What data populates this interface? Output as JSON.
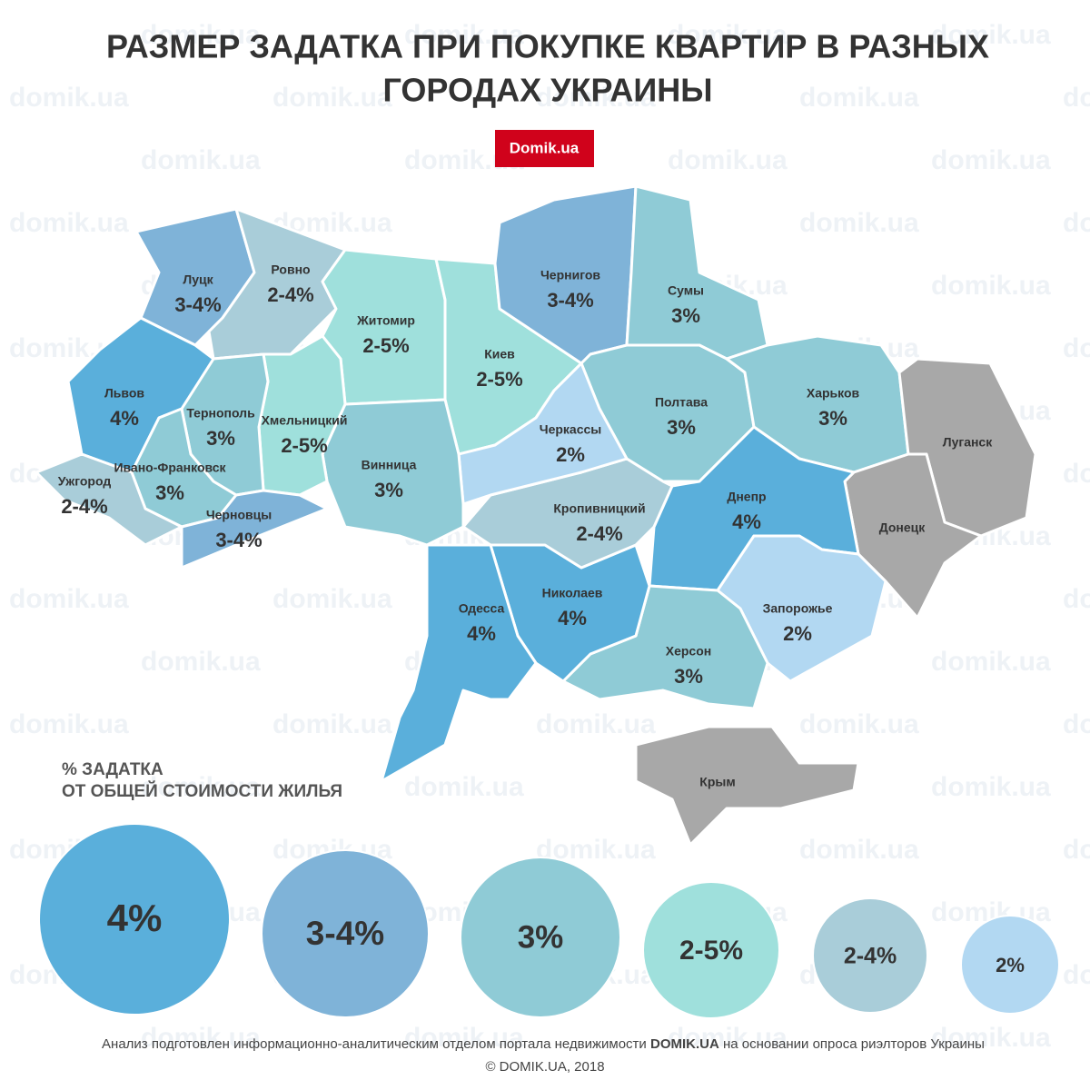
{
  "header": {
    "title_lines": [
      "РАЗМЕР ЗАДАТКА ПРИ ПОКУПКЕ КВАРТИР В РАЗНЫХ",
      "ГОРОДАХ УКРАИНЫ"
    ],
    "badge": "Domik.ua"
  },
  "watermark": "domik.ua",
  "regions": [
    {
      "name": "Луцк",
      "label": "3-4%",
      "color": "#7fb3d8"
    },
    {
      "name": "Ровно",
      "label": "2-4%",
      "color": "#a9cdd9"
    },
    {
      "name": "Житомир",
      "label": "2-5%",
      "color": "#9fe0dc"
    },
    {
      "name": "Киев",
      "label": "2-5%",
      "color": "#9fe0dc"
    },
    {
      "name": "Чернигов",
      "label": "3-4%",
      "color": "#7fb3d8"
    },
    {
      "name": "Сумы",
      "label": "3%",
      "color": "#8fcbd6"
    },
    {
      "name": "Полтава",
      "label": "3%",
      "color": "#8fcbd6"
    },
    {
      "name": "Харьков",
      "label": "3%",
      "color": "#8fcbd6"
    },
    {
      "name": "Луганск",
      "color": "#a8a8a8"
    },
    {
      "name": "Донецк",
      "color": "#a8a8a8"
    },
    {
      "name": "Днепр",
      "label": "4%",
      "color": "#5aafdb"
    },
    {
      "name": "Запорожье",
      "label": "2%",
      "color": "#b2d8f2"
    },
    {
      "name": "Херсон",
      "label": "3%",
      "color": "#8fcbd6"
    },
    {
      "name": "Крым",
      "color": "#a8a8a8"
    },
    {
      "name": "Николаев",
      "label": "4%",
      "color": "#5aafdb"
    },
    {
      "name": "Кропивницкий",
      "label": "2-4%",
      "color": "#a9cdd9"
    },
    {
      "name": "Черкассы",
      "label": "2%",
      "color": "#b2d8f2"
    },
    {
      "name": "Одесса",
      "label": "4%",
      "color": "#5aafdb"
    },
    {
      "name": "Винница",
      "label": "3%",
      "color": "#8fcbd6"
    },
    {
      "name": "Хмельницкий",
      "label": "2-5%",
      "color": "#9fe0dc"
    },
    {
      "name": "Тернополь",
      "label": "3%",
      "color": "#8fcbd6"
    },
    {
      "name": "Львов",
      "label": "4%",
      "color": "#5aafdb"
    },
    {
      "name": "Ивано-Франковск",
      "label": "3%",
      "color": "#8fcbd6"
    },
    {
      "name": "Ужгород",
      "label": "2-4%",
      "color": "#a9cdd9"
    },
    {
      "name": "Черновцы",
      "label": "3-4%",
      "color": "#7fb3d8"
    }
  ],
  "legend": {
    "title_lines": [
      "% ЗАДАТКА",
      "ОТ ОБЩЕЙ СТОИМОСТИ ЖИЛЬЯ"
    ],
    "items": [
      {
        "label": "4%",
        "color": "#5aafdb"
      },
      {
        "label": "3-4%",
        "color": "#7fb3d8"
      },
      {
        "label": "3%",
        "color": "#8fcbd6"
      },
      {
        "label": "2-5%",
        "color": "#9fe0dc"
      },
      {
        "label": "2-4%",
        "color": "#a9cdd9"
      },
      {
        "label": "2%",
        "color": "#b2d8f2"
      }
    ]
  },
  "footer": {
    "note_parts": [
      "Анализ подготовлен информационно-аналитическим отделом портала недвижимости ",
      "DOMIK.UA",
      " на основании опроса риэлторов Украины"
    ],
    "copyright": "© DOMIK.UA, 2018"
  }
}
